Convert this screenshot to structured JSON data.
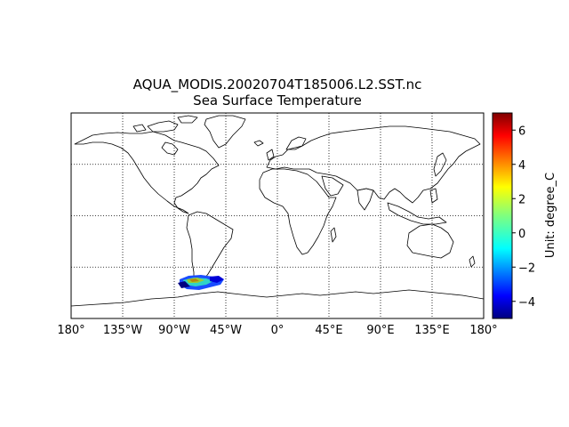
{
  "title": {
    "line1": "AQUA_MODIS.20020704T185006.L2.SST.nc",
    "line2": "Sea Surface Temperature"
  },
  "map": {
    "projection": "plate-carree",
    "lon_range": [
      -180,
      180
    ],
    "lat_range": [
      -90,
      90
    ],
    "lon_ticks": [
      -180,
      -135,
      -90,
      -45,
      0,
      45,
      90,
      135,
      180
    ],
    "lon_tick_labels": [
      "180°",
      "135°W",
      "90°W",
      "45°W",
      "0°",
      "45°E",
      "90°E",
      "135°E",
      "180°"
    ],
    "lat_gridlines": [
      -45,
      0,
      45
    ],
    "gridlines": true,
    "data_region": "south of South America (Drake Passage)",
    "data_lon_range": [
      -84,
      -45
    ],
    "data_lat_range": [
      -63,
      -55
    ]
  },
  "colorbar": {
    "label": "Unit: degree_C",
    "colormap": "jet",
    "vmin": -5,
    "vmax": 7,
    "ticks": [
      6,
      4,
      2,
      0,
      -2,
      -4
    ],
    "tick_labels": [
      "6",
      "4",
      "2",
      "0",
      "−2",
      "−4"
    ],
    "colors": [
      "#00007f",
      "#0000ff",
      "#007fff",
      "#00ffff",
      "#7fff7f",
      "#ffff00",
      "#ff7f00",
      "#ff0000",
      "#7f0000"
    ]
  }
}
